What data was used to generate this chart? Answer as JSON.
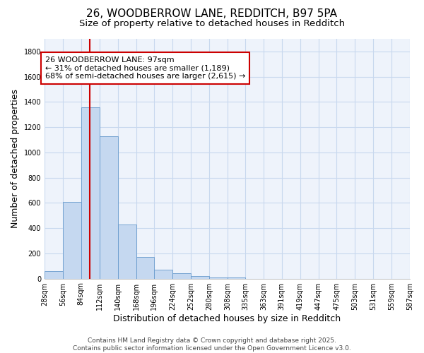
{
  "title1": "26, WOODBERROW LANE, REDDITCH, B97 5PA",
  "title2": "Size of property relative to detached houses in Redditch",
  "xlabel": "Distribution of detached houses by size in Redditch",
  "ylabel": "Number of detached properties",
  "bin_edges": [
    28,
    56,
    84,
    112,
    140,
    168,
    196,
    224,
    252,
    280,
    308,
    335,
    363,
    391,
    419,
    447,
    475,
    503,
    531,
    559,
    587
  ],
  "bar_heights": [
    60,
    610,
    1360,
    1130,
    430,
    170,
    70,
    40,
    20,
    10,
    10,
    0,
    0,
    0,
    0,
    0,
    0,
    0,
    0,
    0
  ],
  "bar_color": "#c5d8f0",
  "bar_edge_color": "#6699cc",
  "vline_x": 97,
  "vline_color": "#cc0000",
  "ylim": [
    0,
    1900
  ],
  "yticks": [
    0,
    200,
    400,
    600,
    800,
    1000,
    1200,
    1400,
    1600,
    1800
  ],
  "xtick_labels": [
    "28sqm",
    "56sqm",
    "84sqm",
    "112sqm",
    "140sqm",
    "168sqm",
    "196sqm",
    "224sqm",
    "252sqm",
    "280sqm",
    "308sqm",
    "335sqm",
    "363sqm",
    "391sqm",
    "419sqm",
    "447sqm",
    "475sqm",
    "503sqm",
    "531sqm",
    "559sqm",
    "587sqm"
  ],
  "annotation_text": "26 WOODBERROW LANE: 97sqm\n← 31% of detached houses are smaller (1,189)\n68% of semi-detached houses are larger (2,615) →",
  "annotation_box_color": "#ffffff",
  "annotation_box_edge_color": "#cc0000",
  "footer1": "Contains HM Land Registry data © Crown copyright and database right 2025.",
  "footer2": "Contains public sector information licensed under the Open Government Licence v3.0.",
  "bg_color": "#ffffff",
  "plot_bg_color": "#eef3fb",
  "grid_color": "#c8d8ee",
  "title_fontsize": 11,
  "subtitle_fontsize": 9.5,
  "axis_label_fontsize": 9,
  "tick_fontsize": 7,
  "annotation_fontsize": 8,
  "footer_fontsize": 6.5
}
